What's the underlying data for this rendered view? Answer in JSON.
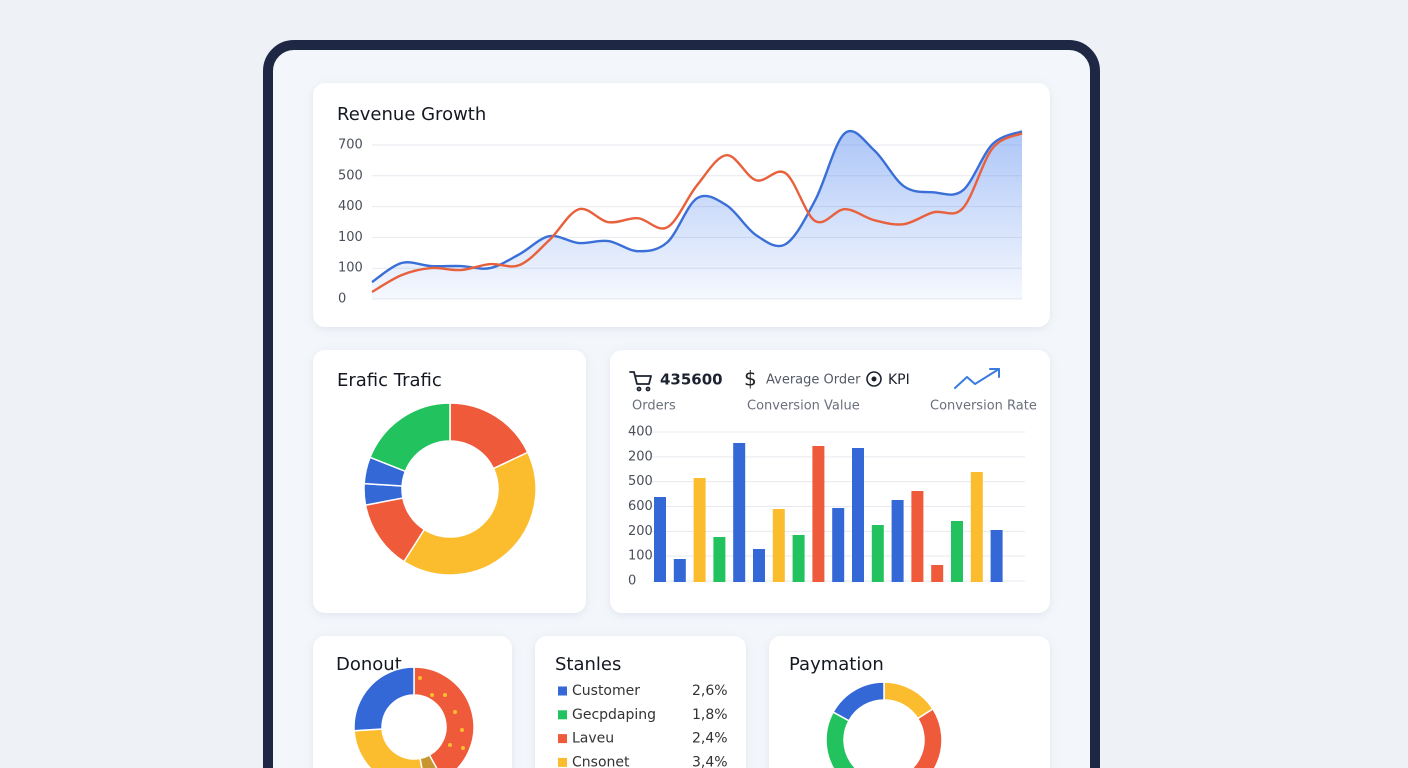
{
  "chart_data": [
    {
      "type": "line",
      "title": "Revenue Growth",
      "y_labels": [
        "700",
        "500",
        "400",
        "100",
        "100",
        "0"
      ],
      "ylim": [
        0,
        770
      ],
      "area": true,
      "grid": true,
      "series": [
        {
          "color": "#3a6fd8",
          "values": [
            77,
            164,
            150,
            150,
            141,
            205,
            286,
            255,
            264,
            218,
            259,
            459,
            427,
            291,
            250,
            450,
            755,
            677,
            514,
            486,
            495,
            705,
            764
          ]
        },
        {
          "color": "#e8603c",
          "values": [
            32,
            109,
            141,
            132,
            159,
            155,
            268,
            409,
            350,
            368,
            327,
            518,
            655,
            541,
            573,
            355,
            409,
            359,
            341,
            395,
            414,
            686,
            755
          ]
        }
      ]
    },
    {
      "type": "donut",
      "title": "Erafic Trafic",
      "values": [
        18,
        41,
        13,
        4,
        5,
        19
      ],
      "colors": [
        "#ee5a3a",
        "#fbbd2e",
        "#ee5a3a",
        "#3468d6",
        "#3468d6",
        "#22c35e"
      ]
    },
    {
      "type": "bar",
      "y_labels": [
        "400",
        "200",
        "500",
        "600",
        "200",
        "100",
        "0"
      ],
      "ylim": [
        0,
        600
      ],
      "grid": true,
      "values": [
        340,
        92,
        416,
        180,
        556,
        132,
        292,
        188,
        544,
        296,
        536,
        228,
        328,
        364,
        68,
        244,
        440,
        208
      ],
      "colors": [
        "#3468d6",
        "#3468d6",
        "#fbbd2e",
        "#22c35e",
        "#3468d6",
        "#3468d6",
        "#fbbd2e",
        "#22c35e",
        "#ee5a3a",
        "#3468d6",
        "#3468d6",
        "#22c35e",
        "#3468d6",
        "#ee5a3a",
        "#ee5a3a",
        "#22c35e",
        "#fbbd2e",
        "#3468d6"
      ]
    },
    {
      "type": "donut",
      "title": "Donout",
      "values": [
        42,
        5,
        27,
        26
      ],
      "colors": [
        "#ee5a3a",
        "#c8962e",
        "#fbbd2e",
        "#3468d6"
      ]
    },
    {
      "type": "donut",
      "title": "Paymation",
      "values": [
        16,
        33,
        34,
        17
      ],
      "colors": [
        "#fbbd2e",
        "#ee5a3a",
        "#22c35e",
        "#3468d6"
      ]
    }
  ],
  "kpis": [
    {
      "value": "435600",
      "label": "Orders"
    },
    {
      "value": "Average Order",
      "label": "Conversion Value"
    },
    {
      "value": "KPI",
      "label": "Conversion Rate"
    }
  ],
  "stanles": {
    "title": "Stanles",
    "rows": [
      {
        "name": "Customer",
        "value": "2,6%",
        "color": "#3468d6"
      },
      {
        "name": "Gecpdaping",
        "value": "1,8%",
        "color": "#22c35e"
      },
      {
        "name": "Laveu",
        "value": "2,4%",
        "color": "#ee5a3a"
      },
      {
        "name": "Cnsonet",
        "value": "3,4%",
        "color": "#fbbd2e"
      }
    ]
  }
}
